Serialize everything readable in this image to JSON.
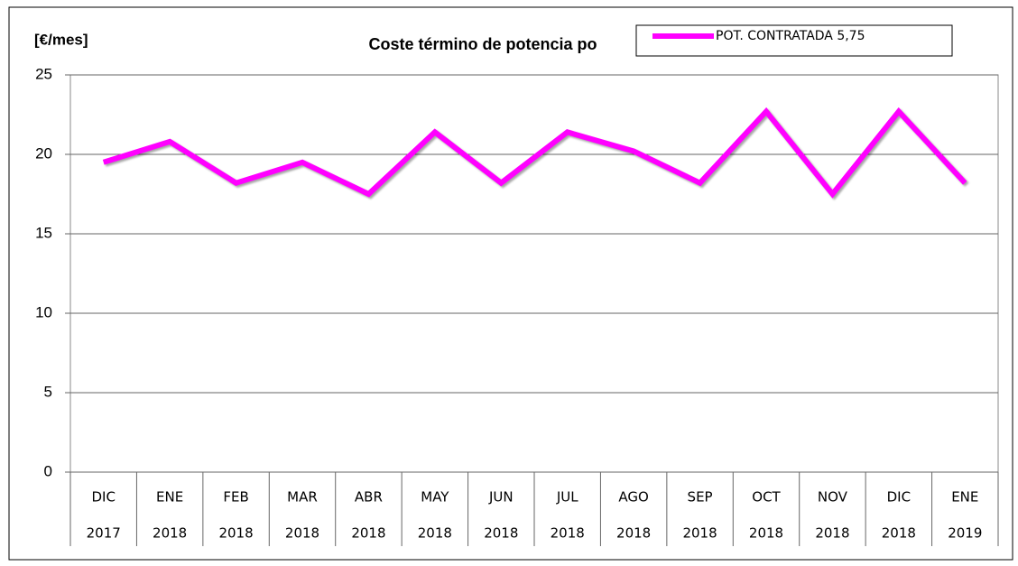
{
  "chart_data": {
    "type": "line",
    "title": "Coste término de potencia po",
    "y_label": "[€/mes]",
    "categories": [
      [
        "DIC",
        "2017"
      ],
      [
        "ENE",
        "2018"
      ],
      [
        "FEB",
        "2018"
      ],
      [
        "MAR",
        "2018"
      ],
      [
        "ABR",
        "2018"
      ],
      [
        "MAY",
        "2018"
      ],
      [
        "JUN",
        "2018"
      ],
      [
        "JUL",
        "2018"
      ],
      [
        "AGO",
        "2018"
      ],
      [
        "SEP",
        "2018"
      ],
      [
        "OCT",
        "2018"
      ],
      [
        "NOV",
        "2018"
      ],
      [
        "DIC",
        "2018"
      ],
      [
        "ENE",
        "2019"
      ]
    ],
    "series": [
      {
        "name": "POT. CONTRATADA 5,75",
        "color": "#ff00ff",
        "values": [
          19.5,
          20.8,
          18.2,
          19.5,
          17.5,
          21.4,
          18.2,
          21.4,
          20.2,
          18.2,
          22.7,
          17.5,
          22.7,
          18.2
        ]
      }
    ],
    "ylim": [
      0,
      25
    ],
    "yticks": [
      0,
      5,
      10,
      15,
      20,
      25
    ],
    "grid": true,
    "legend": "top-right"
  }
}
